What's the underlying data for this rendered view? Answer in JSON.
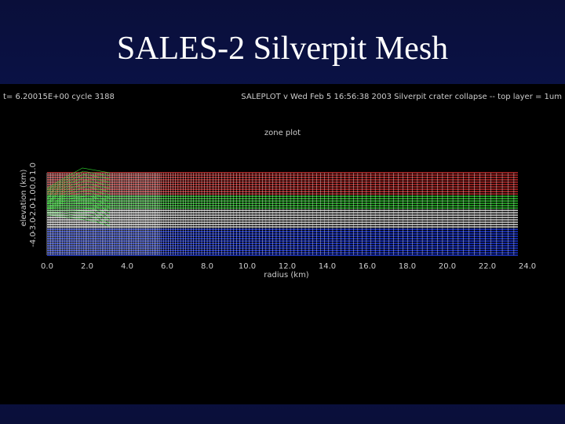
{
  "slide": {
    "title": "SALES-2 Silverpit Mesh"
  },
  "plot": {
    "header_left": "t= 6.20015E+00 cycle 3188",
    "header_right": "SALEPLOT v   Wed Feb  5 16:56:38 2003   Silverpit crater collapse -- top layer = 1um",
    "title": "zone plot",
    "x_label": "radius (km)",
    "y_label": "elevation (km)",
    "x_ticks": [
      "0.0",
      "2.0",
      "4.0",
      "6.0",
      "8.0",
      "10.0",
      "12.0",
      "14.0",
      "16.0",
      "18.0",
      "20.0",
      "22.0",
      "24.0"
    ],
    "y_ticks": [
      "-4.0",
      "-3.0",
      "-2.0",
      "-1.0",
      "0.0",
      "1.0"
    ]
  }
}
